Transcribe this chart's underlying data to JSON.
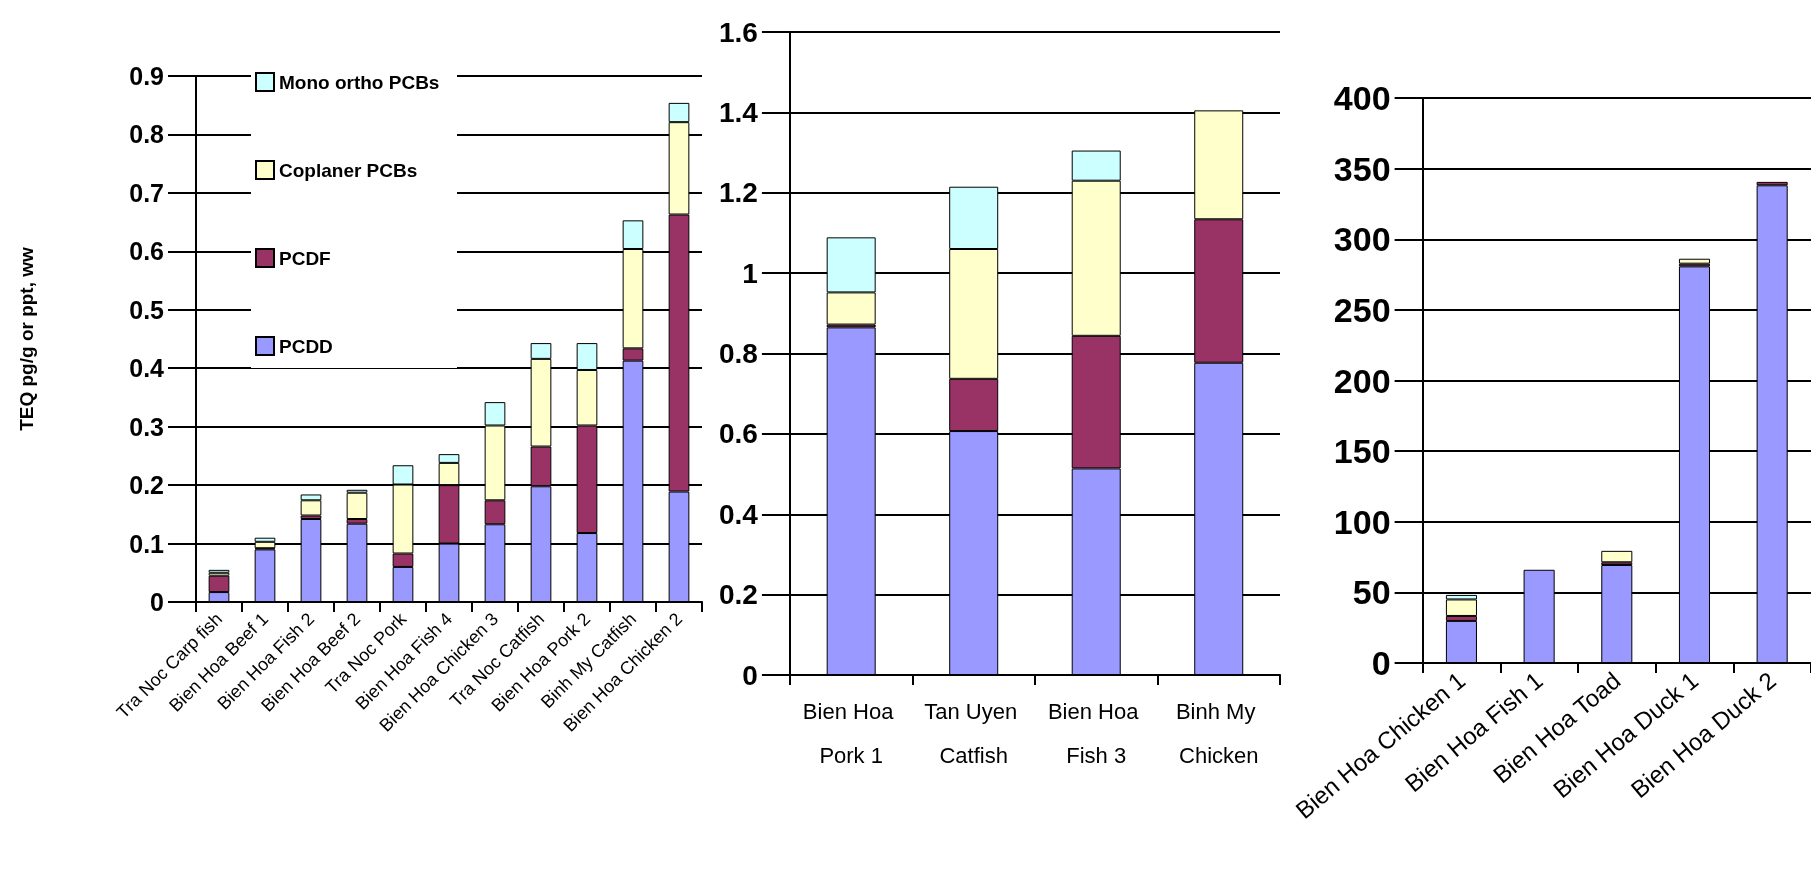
{
  "chart_data": [
    {
      "type": "bar",
      "ylabel": "TEQ pg/g or ppt, ww",
      "stacked": true,
      "legend": "top left",
      "grid": "y",
      "categories": [
        "Tra Noc Carp fish",
        "Bien Hoa Beef 1",
        "Bien Hoa Fish 2",
        "Bien Hoa Beef 2",
        "Tra Noc Pork",
        "Bien Hoa Fish 4",
        "Bien Hoa Chicken 3",
        "Tra Noc Catfish",
        "Bien Hoa Pork 2",
        "Binh My Catfish",
        "Bien Hoa Chicken 2"
      ],
      "ylim": [
        0,
        0.9
      ],
      "yticks": [
        0,
        0.1,
        0.2,
        0.3,
        0.4,
        0.5,
        0.6,
        0.7,
        0.8,
        0.9
      ],
      "series": [
        {
          "name": "PCDD",
          "color": "#9999ff",
          "values": [
            0.017,
            0.09,
            0.142,
            0.134,
            0.06,
            0.1,
            0.133,
            0.198,
            0.118,
            0.413,
            0.189
          ]
        },
        {
          "name": "PCDF",
          "color": "#993366",
          "values": [
            0.028,
            0.002,
            0.006,
            0.008,
            0.023,
            0.1,
            0.041,
            0.068,
            0.184,
            0.021,
            0.474
          ]
        },
        {
          "name": "Coplaner PCBs",
          "color": "#ffffcc",
          "values": [
            0.005,
            0.011,
            0.026,
            0.045,
            0.118,
            0.038,
            0.128,
            0.15,
            0.095,
            0.17,
            0.158
          ]
        },
        {
          "name": "Mono ortho PCBs",
          "color": "#ccffff",
          "values": [
            0.005,
            0.007,
            0.01,
            0.005,
            0.033,
            0.015,
            0.04,
            0.027,
            0.046,
            0.049,
            0.033
          ]
        }
      ]
    },
    {
      "type": "bar",
      "stacked": true,
      "grid": "y",
      "categories": [
        "Bien Hoa Pork 1",
        "Tan Uyen Catfish",
        "Bien Hoa Fish 3",
        "Binh My Chicken"
      ],
      "ylim": [
        0,
        1.6
      ],
      "yticks": [
        0,
        0.2,
        0.4,
        0.6,
        0.8,
        1,
        1.2,
        1.4,
        1.6
      ],
      "series": [
        {
          "color": "#9999ff",
          "values": [
            0.865,
            0.607,
            0.514,
            0.777
          ]
        },
        {
          "color": "#993366",
          "values": [
            0.007,
            0.13,
            0.33,
            0.357
          ]
        },
        {
          "color": "#ffffcc",
          "values": [
            0.08,
            0.323,
            0.386,
            0.271
          ]
        },
        {
          "color": "#ccffff",
          "values": [
            0.137,
            0.155,
            0.075,
            null
          ]
        }
      ]
    },
    {
      "type": "bar",
      "stacked": true,
      "grid": "y",
      "categories": [
        "Bien Hoa Chicken 1",
        "Bien Hoa Fish 1",
        "Bien Hoa Toad",
        "Bien Hoa Duck 1",
        "Bien Hoa Duck 2"
      ],
      "ylim": [
        0,
        400
      ],
      "yticks": [
        0,
        50,
        100,
        150,
        200,
        250,
        300,
        350,
        400
      ],
      "series": [
        {
          "color": "#9999ff",
          "values": [
            29.8,
            66,
            69.4,
            280.8,
            338.2
          ]
        },
        {
          "color": "#993366",
          "values": [
            3.5,
            null,
            1.9,
            1.9,
            2.4
          ]
        },
        {
          "color": "#ffffcc",
          "values": [
            11.7,
            null,
            8.1,
            3.5,
            null
          ]
        },
        {
          "color": "#ccffff",
          "values": [
            3.2,
            null,
            null,
            null,
            null
          ]
        }
      ]
    }
  ]
}
